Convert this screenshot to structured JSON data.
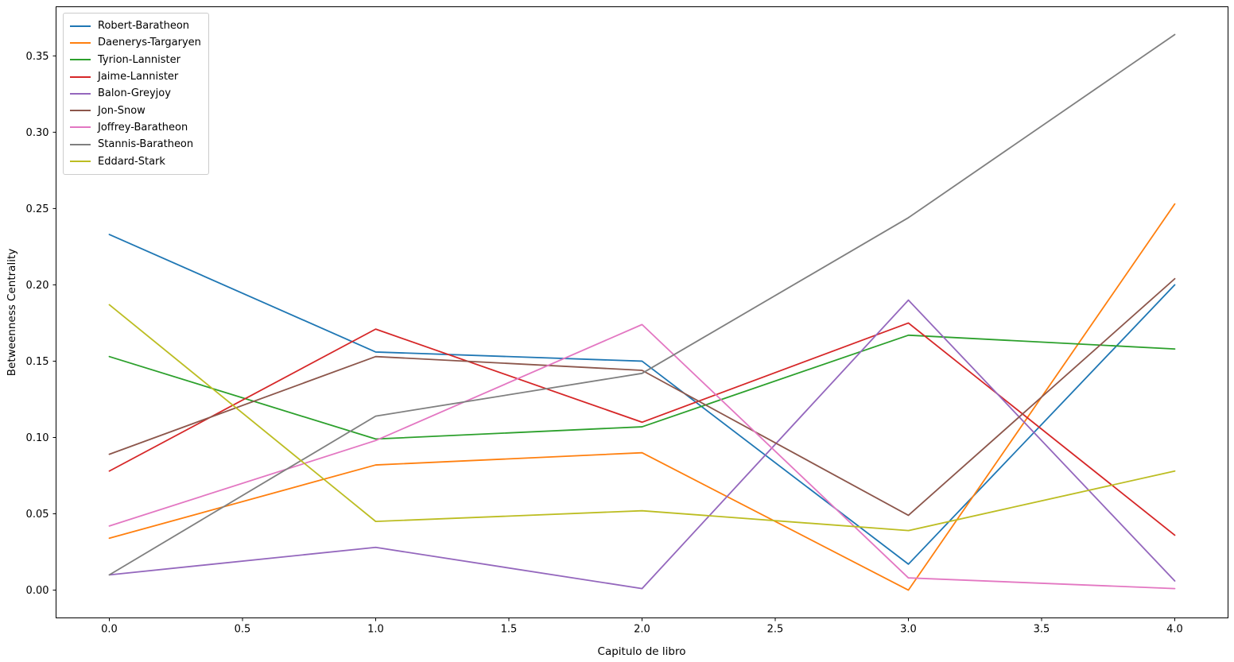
{
  "figure": {
    "background": "#ffffff",
    "spine_color": "#000000"
  },
  "chart_data": {
    "type": "line",
    "title": "",
    "xlabel": "Capitulo de libro",
    "ylabel": "Betweenness Centrality",
    "x": [
      0,
      1,
      2,
      3,
      4
    ],
    "series": [
      {
        "name": "Robert-Baratheon",
        "color": "#1f77b4",
        "values": [
          0.233,
          0.156,
          0.15,
          0.017,
          0.2
        ]
      },
      {
        "name": "Daenerys-Targaryen",
        "color": "#ff7f0e",
        "values": [
          0.034,
          0.082,
          0.09,
          0.0,
          0.253
        ]
      },
      {
        "name": "Tyrion-Lannister",
        "color": "#2ca02c",
        "values": [
          0.153,
          0.099,
          0.107,
          0.167,
          0.158
        ]
      },
      {
        "name": "Jaime-Lannister",
        "color": "#d62728",
        "values": [
          0.078,
          0.171,
          0.11,
          0.175,
          0.036
        ]
      },
      {
        "name": "Balon-Greyjoy",
        "color": "#9467bd",
        "values": [
          0.01,
          0.028,
          0.001,
          0.19,
          0.006
        ]
      },
      {
        "name": "Jon-Snow",
        "color": "#8c564b",
        "values": [
          0.089,
          0.153,
          0.144,
          0.049,
          0.204
        ]
      },
      {
        "name": "Joffrey-Baratheon",
        "color": "#e377c2",
        "values": [
          0.042,
          0.098,
          0.174,
          0.008,
          0.001
        ]
      },
      {
        "name": "Stannis-Baratheon",
        "color": "#7f7f7f",
        "values": [
          0.01,
          0.114,
          0.142,
          0.244,
          0.364
        ]
      },
      {
        "name": "Eddard-Stark",
        "color": "#bcbd22",
        "values": [
          0.187,
          0.045,
          0.052,
          0.039,
          0.078
        ]
      }
    ],
    "xticks": [
      "0.0",
      "0.5",
      "1.0",
      "1.5",
      "2.0",
      "2.5",
      "3.0",
      "3.5",
      "4.0"
    ],
    "yticks": [
      "0.00",
      "0.05",
      "0.10",
      "0.15",
      "0.20",
      "0.25",
      "0.30",
      "0.35"
    ],
    "xlim": [
      -0.2,
      4.2
    ],
    "ylim": [
      -0.0182,
      0.3822
    ],
    "grid": false,
    "legend_position": "upper-left",
    "line_width": 1.8
  }
}
